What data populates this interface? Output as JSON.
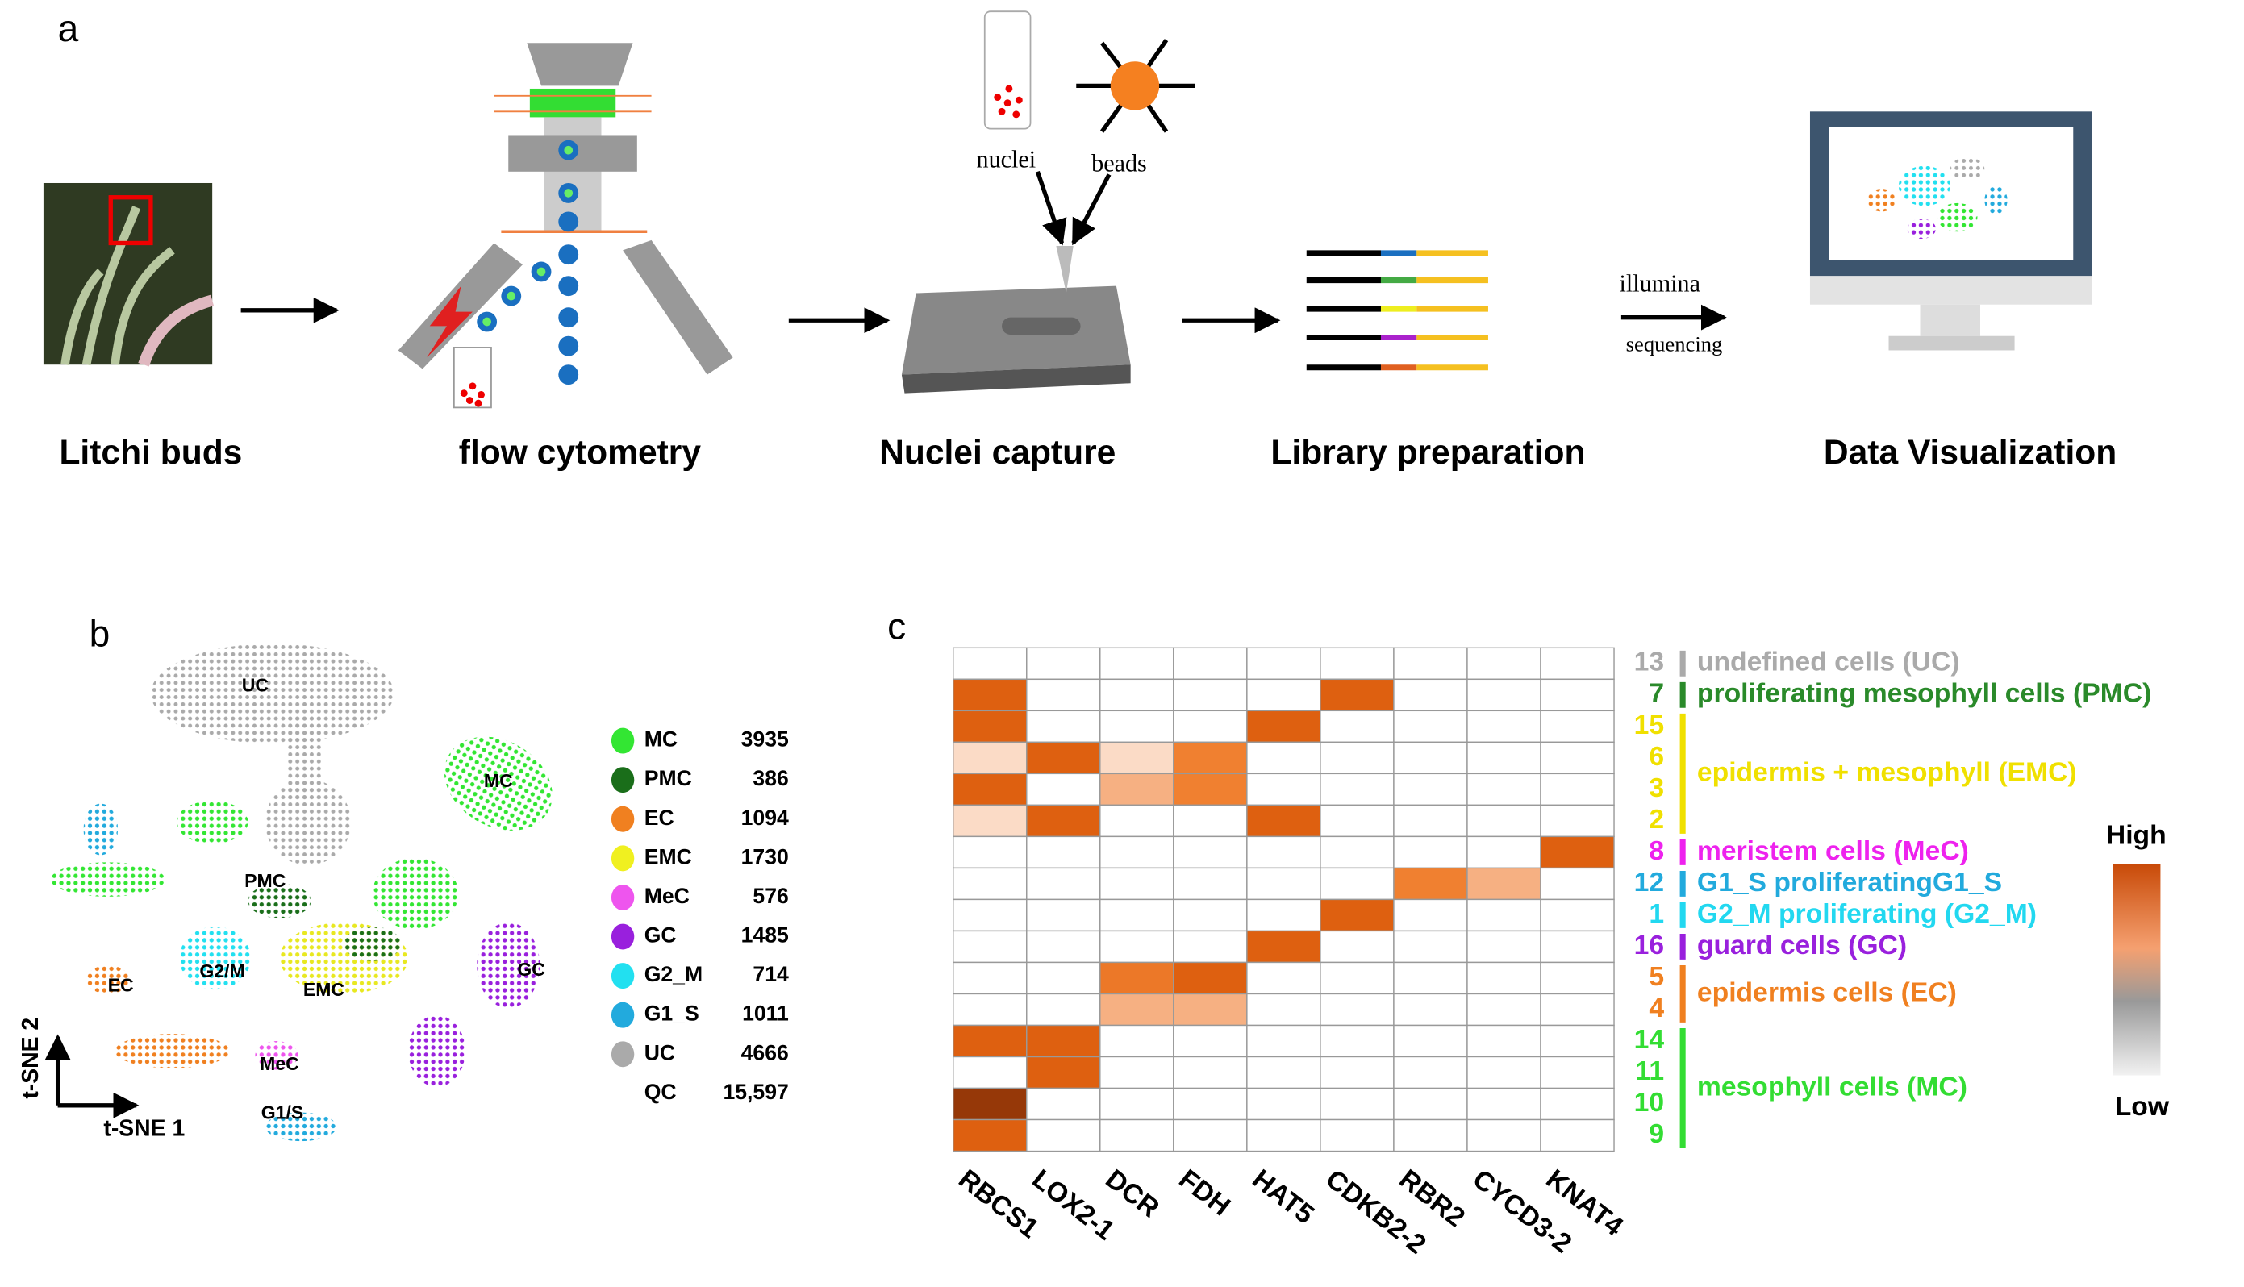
{
  "panel_a": {
    "label": "a",
    "steps": [
      "Litchi buds",
      "flow cytometry",
      "Nuclei capture",
      "Library preparation",
      "Data Visualization"
    ],
    "tube_label": "nuclei",
    "beads_label": "beads",
    "sequencer": "illumina",
    "sequencing": "sequencing"
  },
  "panel_b": {
    "label": "b",
    "clusters": [
      {
        "name": "MC",
        "color": "#33e633",
        "count": "3935"
      },
      {
        "name": "PMC",
        "color": "#1a6e1a",
        "count": "386"
      },
      {
        "name": "EC",
        "color": "#f08020",
        "count": "1094"
      },
      {
        "name": "EMC",
        "color": "#f0f020",
        "count": "1730"
      },
      {
        "name": "MeC",
        "color": "#ee55ee",
        "count": "576"
      },
      {
        "name": "GC",
        "color": "#9920dd",
        "count": "1485"
      },
      {
        "name": "G2_M",
        "color": "#22e0f0",
        "count": "714"
      },
      {
        "name": "G1_S",
        "color": "#22aadd",
        "count": "1011"
      },
      {
        "name": "UC",
        "color": "#aaaaaa",
        "count": "4666"
      }
    ],
    "total": {
      "name": "QC",
      "count": "15,597"
    },
    "map_labels": [
      "UC",
      "MC",
      "PMC",
      "G2/M",
      "EC",
      "EMC",
      "GC",
      "MeC",
      "G1/S"
    ],
    "x_axis": "t-SNE 1",
    "y_axis": "t-SNE 2"
  },
  "panel_c": {
    "label": "c",
    "genes": [
      "RBCS1",
      "LOX2-1",
      "DCR",
      "FDH",
      "HAT5",
      "CDKB2-2",
      "RBR2",
      "CYCD3-2",
      "KNAT4"
    ],
    "groups": [
      {
        "label": "undefined cells (UC)",
        "color": "#aaaaaa",
        "clusters": [
          {
            "id": "13",
            "levels": [
              0,
              0,
              0,
              0,
              0,
              0,
              0,
              0,
              0
            ]
          }
        ]
      },
      {
        "label": "proliferating mesophyll cells (PMC)",
        "color": "#2a8a2a",
        "clusters": [
          {
            "id": "7",
            "levels": [
              0.8,
              0,
              0,
              0,
              0,
              0.8,
              0,
              0,
              0
            ]
          }
        ]
      },
      {
        "label": "epidermis + mesophyll (EMC)",
        "color": "#f0e000",
        "clusters": [
          {
            "id": "15",
            "levels": [
              0.8,
              0,
              0,
              0,
              0.8,
              0,
              0,
              0,
              0
            ]
          },
          {
            "id": "6",
            "levels": [
              0.15,
              0.8,
              0.15,
              0.6,
              0,
              0,
              0,
              0,
              0
            ]
          },
          {
            "id": "3",
            "levels": [
              0.8,
              0,
              0.4,
              0.6,
              0,
              0,
              0,
              0,
              0
            ]
          },
          {
            "id": "2",
            "levels": [
              0.15,
              0.8,
              0,
              0,
              0.8,
              0,
              0,
              0,
              0
            ]
          }
        ]
      },
      {
        "label": "meristem cells (MeC)",
        "color": "#ee22ee",
        "clusters": [
          {
            "id": "8",
            "levels": [
              0,
              0,
              0,
              0,
              0,
              0,
              0,
              0,
              0.8
            ]
          }
        ]
      },
      {
        "label": "G1_S proliferatingG1_S",
        "color": "#22aadd",
        "clusters": [
          {
            "id": "12",
            "levels": [
              0,
              0,
              0,
              0,
              0,
              0,
              0.6,
              0.4,
              0
            ]
          }
        ]
      },
      {
        "label": "G2_M proliferating (G2_M)",
        "color": "#22d8f0",
        "clusters": [
          {
            "id": "1",
            "levels": [
              0,
              0,
              0,
              0,
              0,
              0.8,
              0,
              0,
              0
            ]
          }
        ]
      },
      {
        "label": "guard cells (GC)",
        "color": "#9920dd",
        "clusters": [
          {
            "id": "16",
            "levels": [
              0,
              0,
              0,
              0,
              0.8,
              0,
              0,
              0,
              0
            ]
          }
        ]
      },
      {
        "label": "epidermis cells (EC)",
        "color": "#f08020",
        "clusters": [
          {
            "id": "5",
            "levels": [
              0,
              0,
              0.65,
              0.8,
              0,
              0,
              0,
              0,
              0
            ]
          },
          {
            "id": "4",
            "levels": [
              0,
              0,
              0.4,
              0.4,
              0,
              0,
              0,
              0,
              0
            ]
          }
        ]
      },
      {
        "label": "mesophyll cells (MC)",
        "color": "#33dd33",
        "clusters": [
          {
            "id": "14",
            "levels": [
              0.8,
              0.8,
              0,
              0,
              0,
              0,
              0,
              0,
              0
            ]
          },
          {
            "id": "11",
            "levels": [
              0,
              0.8,
              0,
              0,
              0,
              0,
              0,
              0,
              0
            ]
          },
          {
            "id": "10",
            "levels": [
              1,
              0,
              0,
              0,
              0,
              0,
              0,
              0,
              0
            ]
          },
          {
            "id": "9",
            "levels": [
              0.8,
              0,
              0,
              0,
              0,
              0,
              0,
              0,
              0
            ]
          }
        ]
      }
    ],
    "scale_high": "High",
    "scale_low": "Low"
  }
}
